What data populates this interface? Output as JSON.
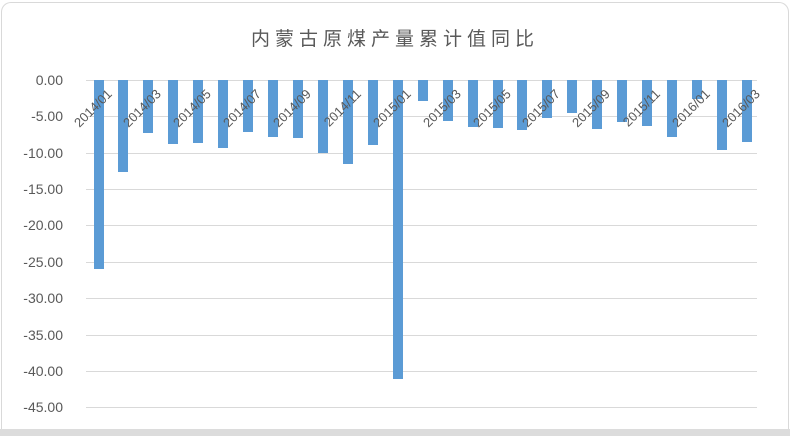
{
  "chart_data": {
    "type": "bar",
    "title": "内蒙古原煤产量累计值同比",
    "x": [
      "2014/01",
      "2014/02",
      "2014/03",
      "2014/04",
      "2014/05",
      "2014/06",
      "2014/07",
      "2014/08",
      "2014/09",
      "2014/10",
      "2014/11",
      "2014/12",
      "2015/01",
      "2015/02",
      "2015/03",
      "2015/04",
      "2015/05",
      "2015/06",
      "2015/07",
      "2015/08",
      "2015/09",
      "2015/10",
      "2015/11",
      "2015/12",
      "2016/01",
      "2016/02",
      "2016/03"
    ],
    "values": [
      -26.0,
      -12.6,
      -7.3,
      -8.8,
      -8.7,
      -9.3,
      -7.1,
      -7.8,
      -8.0,
      -10.0,
      -11.6,
      -9.0,
      -41.1,
      -2.9,
      -5.6,
      -6.4,
      -6.6,
      -6.9,
      -5.2,
      -4.5,
      -6.7,
      -5.8,
      -6.3,
      -7.9,
      -2.6,
      -9.6,
      -8.5
    ],
    "x_tick_labels_shown": [
      "2014/01",
      "2014/03",
      "2014/05",
      "2014/07",
      "2014/09",
      "2014/11",
      "2015/01",
      "2015/03",
      "2015/05",
      "2015/07",
      "2015/09",
      "2015/11",
      "2016/01",
      "2016/03"
    ],
    "x_label_every_n": 2,
    "x_label_rotation_deg": 45,
    "y_tick_labels": [
      "0.00",
      "-5.00",
      "-10.00",
      "-15.00",
      "-20.00",
      "-25.00",
      "-30.00",
      "-35.00",
      "-40.00",
      "-45.00"
    ],
    "ylim": [
      -45,
      0
    ],
    "grid": true,
    "legend": "none",
    "bar_color": "#5b9bd5",
    "text_color": "#595959",
    "gridline_color": "#d9d9d9",
    "frame_color": "#d9d9d9"
  }
}
